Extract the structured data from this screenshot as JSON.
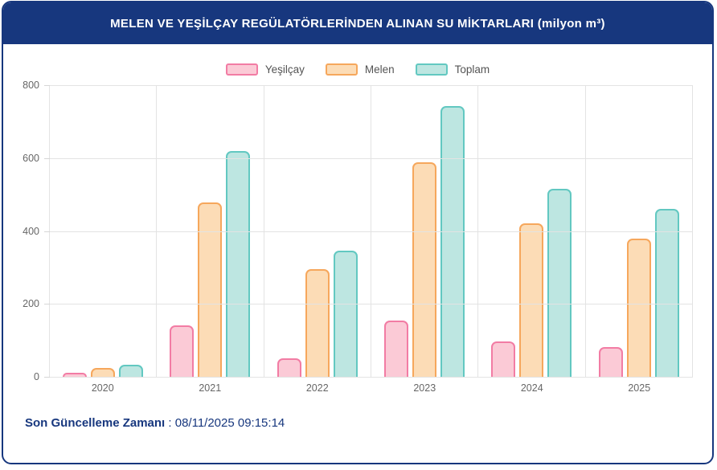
{
  "header": {
    "title": "MELEN VE YEŞİLÇAY REGÜLATÖRLERİNDEN ALINAN SU MİKTARLARI (milyon m³)"
  },
  "chart_data": {
    "type": "bar",
    "title": "MELEN VE YEŞİLÇAY REGÜLATÖRLERİNDEN ALINAN SU MİKTARLARI (milyon m³)",
    "categories": [
      "2020",
      "2021",
      "2022",
      "2023",
      "2024",
      "2025"
    ],
    "series": [
      {
        "name": "Yeşilçay",
        "values": [
          10,
          142,
          51,
          155,
          96,
          82
        ],
        "fill": "#fbcad6",
        "border": "#f27ca4"
      },
      {
        "name": "Melen",
        "values": [
          24,
          478,
          296,
          588,
          420,
          378
        ],
        "fill": "#fcdcb6",
        "border": "#f6a75c"
      },
      {
        "name": "Toplam",
        "values": [
          34,
          620,
          347,
          743,
          516,
          460
        ],
        "fill": "#bde6e1",
        "border": "#62c8c1"
      }
    ],
    "xlabel": "",
    "ylabel": "",
    "ylim": [
      0,
      800
    ],
    "yticks": [
      0,
      200,
      400,
      600,
      800
    ],
    "grid": true,
    "legend_position": "top"
  },
  "footer": {
    "label": "Son Güncelleme Zamanı",
    "separator": " : ",
    "value": "08/11/2025 09:15:14"
  },
  "colors": {
    "header_bg": "#17377e",
    "card_border": "#17377e",
    "grid": "#e3e3e3",
    "axis_text": "#666666",
    "legend_text": "#545454",
    "footer_text": "#17377e"
  }
}
